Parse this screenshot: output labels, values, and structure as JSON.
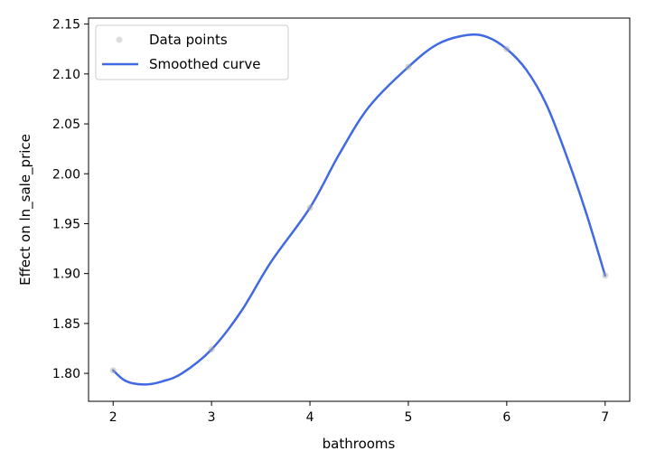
{
  "chart_data": {
    "type": "line",
    "title": "",
    "xlabel": "bathrooms",
    "ylabel": "Effect on ln_sale_price",
    "xlim": [
      1.75,
      7.25
    ],
    "ylim": [
      1.772,
      2.156
    ],
    "x_ticks": [
      2,
      3,
      4,
      5,
      6,
      7
    ],
    "x_tick_labels": [
      "2",
      "3",
      "4",
      "5",
      "6",
      "7"
    ],
    "y_ticks": [
      1.8,
      1.85,
      1.9,
      1.95,
      2.0,
      2.05,
      2.1,
      2.15
    ],
    "y_tick_labels": [
      "1.80",
      "1.85",
      "1.90",
      "1.95",
      "2.00",
      "2.05",
      "2.10",
      "2.15"
    ],
    "grid": false,
    "legend_position": "top-left",
    "series": [
      {
        "name": "Data points",
        "kind": "scatter",
        "color": "#a9a9a9",
        "x": [
          2,
          3,
          4,
          5,
          6,
          7
        ],
        "y": [
          1.803,
          1.824,
          1.966,
          2.107,
          2.125,
          1.898
        ]
      },
      {
        "name": "Smoothed curve",
        "kind": "line",
        "color": "#4169e1",
        "x": [
          2.0,
          2.1,
          2.2,
          2.35,
          2.5,
          2.7,
          3.0,
          3.3,
          3.6,
          4.0,
          4.3,
          4.6,
          5.0,
          5.3,
          5.6,
          5.8,
          6.0,
          6.2,
          6.4,
          6.6,
          6.8,
          7.0
        ],
        "y": [
          1.803,
          1.794,
          1.79,
          1.789,
          1.792,
          1.8,
          1.824,
          1.862,
          1.911,
          1.966,
          2.02,
          2.067,
          2.107,
          2.13,
          2.139,
          2.137,
          2.125,
          2.104,
          2.07,
          2.02,
          1.963,
          1.898
        ]
      }
    ]
  }
}
